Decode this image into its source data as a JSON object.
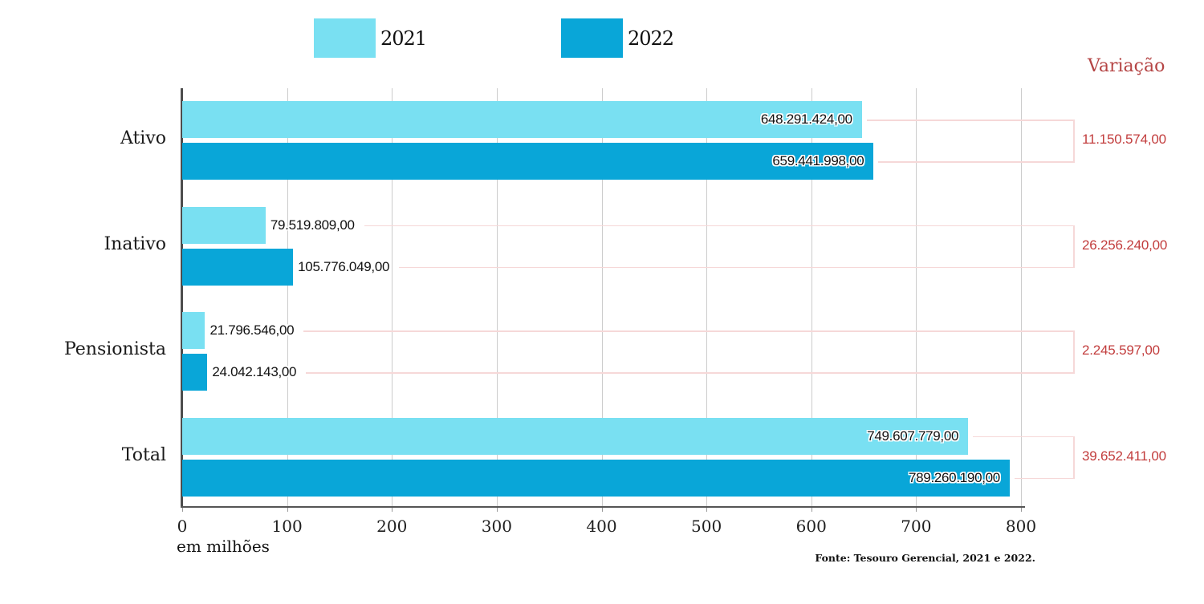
{
  "chart_data": {
    "type": "bar",
    "orientation": "horizontal",
    "categories": [
      "Ativo",
      "Inativo",
      "Pensionista",
      "Total"
    ],
    "series": [
      {
        "name": "2021",
        "color": "#79e0f2",
        "values_millions": [
          648.291424,
          79.519809,
          21.796546,
          749.607779
        ],
        "labels": [
          "648.291.424,00",
          "79.519.809,00",
          "21.796.546,00",
          "749.607.779,00"
        ]
      },
      {
        "name": "2022",
        "color": "#09a6d8",
        "values_millions": [
          659.441998,
          105.776049,
          24.042143,
          789.26019
        ],
        "labels": [
          "659.441.998,00",
          "105.776.049,00",
          "24.042.143,00",
          "789.260.190,00"
        ]
      }
    ],
    "variation": {
      "title": "Variação",
      "title_color": "#b54545",
      "value_color": "#c23d3d",
      "line_color": "#f6d8d8",
      "labels": [
        "11.150.574,00",
        "26.256.240,00",
        "2.245.597,00",
        "39.652.411,00"
      ]
    },
    "x_axis": {
      "tick_labels": [
        "0",
        "100",
        "200",
        "300",
        "400",
        "500",
        "600",
        "700",
        "800"
      ],
      "min": 0,
      "max": 800,
      "unit_label": "em milhões",
      "gridlines": true
    },
    "legend_position": "top",
    "source": "Fonte: Tesouro Gerencial, 2021 e 2022."
  }
}
